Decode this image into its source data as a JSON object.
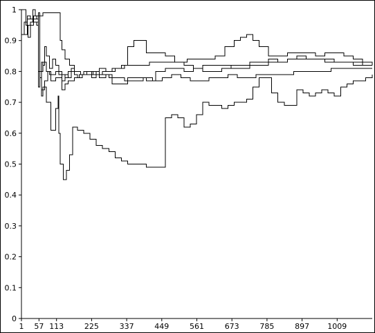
{
  "chart_data": {
    "type": "line",
    "title": "",
    "xlabel": "",
    "ylabel": "",
    "xlim": [
      1,
      1121
    ],
    "ylim": [
      0,
      1
    ],
    "grid": false,
    "legend": "none",
    "x_ticks": [
      1,
      57,
      113,
      225,
      337,
      449,
      561,
      673,
      785,
      897,
      1009
    ],
    "y_ticks": [
      0,
      0.1,
      0.2,
      0.3,
      0.4,
      0.5,
      0.6,
      0.7,
      0.8,
      0.9,
      1
    ],
    "series": [
      {
        "x": [
          1,
          8,
          15,
          22,
          30,
          38,
          45,
          50,
          55,
          60,
          70,
          80,
          95,
          110,
          118,
          125,
          130,
          140,
          155,
          170,
          190,
          210,
          230,
          250,
          270,
          290,
          310,
          330,
          350,
          380,
          410,
          440,
          470,
          500,
          530,
          560,
          590,
          620,
          650,
          680,
          700,
          720,
          740,
          760,
          790,
          820,
          850,
          880,
          910,
          940,
          970,
          1000,
          1030,
          1060,
          1090,
          1121
        ],
        "y": [
          1.0,
          1.0,
          0.95,
          0.91,
          0.96,
          1.0,
          0.98,
          0.97,
          0.99,
          0.98,
          0.99,
          0.99,
          0.99,
          0.99,
          0.99,
          0.9,
          0.87,
          0.84,
          0.82,
          0.8,
          0.79,
          0.8,
          0.79,
          0.81,
          0.8,
          0.81,
          0.81,
          0.82,
          0.82,
          0.82,
          0.83,
          0.83,
          0.83,
          0.83,
          0.84,
          0.84,
          0.84,
          0.85,
          0.88,
          0.9,
          0.91,
          0.92,
          0.9,
          0.88,
          0.85,
          0.85,
          0.86,
          0.86,
          0.86,
          0.85,
          0.86,
          0.86,
          0.85,
          0.84,
          0.83,
          0.82
        ]
      },
      {
        "x": [
          1,
          10,
          20,
          30,
          40,
          50,
          55,
          60,
          65,
          70,
          75,
          80,
          90,
          100,
          110,
          120,
          130,
          140,
          150,
          160,
          170,
          180,
          195,
          210,
          225,
          240,
          260,
          280,
          300,
          320,
          340,
          360,
          380,
          400,
          430,
          460,
          490,
          520,
          550,
          580,
          610,
          640,
          670,
          700,
          730,
          760,
          790,
          820,
          850,
          880,
          910,
          940,
          970,
          1000,
          1030,
          1060,
          1090,
          1121
        ],
        "y": [
          0.92,
          0.96,
          0.98,
          0.97,
          0.96,
          0.95,
          0.75,
          0.8,
          0.83,
          0.82,
          0.88,
          0.85,
          0.81,
          0.84,
          0.82,
          0.8,
          0.79,
          0.78,
          0.8,
          0.81,
          0.79,
          0.78,
          0.79,
          0.8,
          0.78,
          0.79,
          0.8,
          0.8,
          0.81,
          0.82,
          0.88,
          0.9,
          0.9,
          0.86,
          0.86,
          0.85,
          0.83,
          0.82,
          0.81,
          0.8,
          0.8,
          0.81,
          0.82,
          0.82,
          0.83,
          0.83,
          0.84,
          0.83,
          0.84,
          0.84,
          0.84,
          0.84,
          0.83,
          0.83,
          0.83,
          0.82,
          0.82,
          0.82
        ]
      },
      {
        "x": [
          1,
          20,
          40,
          55,
          60,
          65,
          70,
          80,
          95,
          110,
          118,
          120,
          125,
          135,
          145,
          155,
          165,
          180,
          200,
          220,
          240,
          260,
          280,
          300,
          320,
          340,
          360,
          380,
          400,
          420,
          440,
          460,
          480,
          500,
          520,
          540,
          560,
          580,
          600,
          620,
          640,
          660,
          680,
          700,
          720,
          740,
          760,
          780,
          800,
          820,
          840,
          860,
          880,
          900,
          920,
          940,
          960,
          980,
          1000,
          1020,
          1040,
          1060,
          1080,
          1100,
          1121
        ],
        "y": [
          0.92,
          0.97,
          0.98,
          0.75,
          0.78,
          0.72,
          0.75,
          0.7,
          0.61,
          0.68,
          0.72,
          0.6,
          0.5,
          0.45,
          0.48,
          0.53,
          0.62,
          0.61,
          0.6,
          0.58,
          0.56,
          0.55,
          0.54,
          0.52,
          0.51,
          0.5,
          0.5,
          0.5,
          0.49,
          0.49,
          0.49,
          0.65,
          0.66,
          0.65,
          0.62,
          0.63,
          0.66,
          0.7,
          0.69,
          0.69,
          0.68,
          0.69,
          0.7,
          0.7,
          0.71,
          0.75,
          0.78,
          0.78,
          0.73,
          0.7,
          0.69,
          0.69,
          0.74,
          0.73,
          0.72,
          0.73,
          0.74,
          0.73,
          0.72,
          0.75,
          0.76,
          0.77,
          0.77,
          0.78,
          0.79
        ]
      },
      {
        "x": [
          1,
          20,
          40,
          55,
          65,
          75,
          85,
          95,
          110,
          120,
          130,
          140,
          150,
          160,
          170,
          185,
          200,
          220,
          240,
          260,
          280,
          300,
          330,
          360,
          390,
          420,
          450,
          480,
          510,
          540,
          570,
          600,
          630,
          660,
          690,
          720,
          750,
          780,
          810,
          840,
          870,
          900,
          930,
          960,
          990,
          1020,
          1050,
          1080,
          1121
        ],
        "y": [
          0.92,
          0.97,
          0.96,
          0.8,
          0.74,
          0.77,
          0.8,
          0.77,
          0.78,
          0.78,
          0.74,
          0.76,
          0.77,
          0.77,
          0.78,
          0.79,
          0.8,
          0.8,
          0.79,
          0.79,
          0.78,
          0.78,
          0.77,
          0.77,
          0.78,
          0.77,
          0.78,
          0.79,
          0.78,
          0.77,
          0.77,
          0.78,
          0.78,
          0.79,
          0.78,
          0.78,
          0.79,
          0.79,
          0.79,
          0.79,
          0.8,
          0.8,
          0.8,
          0.8,
          0.81,
          0.81,
          0.81,
          0.81,
          0.81
        ]
      },
      {
        "x": [
          1,
          20,
          40,
          55,
          60,
          70,
          80,
          90,
          100,
          110,
          120,
          130,
          140,
          150,
          160,
          175,
          190,
          210,
          230,
          250,
          270,
          290,
          310,
          340,
          370,
          400,
          430,
          460,
          490,
          520,
          550,
          580,
          610,
          640,
          670,
          700,
          730,
          760,
          790,
          820,
          850,
          880,
          910,
          940,
          970,
          1000,
          1030,
          1060,
          1090,
          1121
        ],
        "y": [
          0.92,
          0.95,
          0.97,
          0.98,
          0.8,
          0.83,
          0.8,
          0.79,
          0.79,
          0.8,
          0.79,
          0.77,
          0.79,
          0.78,
          0.8,
          0.8,
          0.79,
          0.79,
          0.8,
          0.78,
          0.79,
          0.76,
          0.76,
          0.78,
          0.78,
          0.77,
          0.8,
          0.81,
          0.81,
          0.8,
          0.81,
          0.82,
          0.82,
          0.82,
          0.81,
          0.81,
          0.82,
          0.82,
          0.83,
          0.83,
          0.84,
          0.85,
          0.84,
          0.84,
          0.84,
          0.83,
          0.83,
          0.83,
          0.82,
          0.82
        ]
      }
    ]
  }
}
